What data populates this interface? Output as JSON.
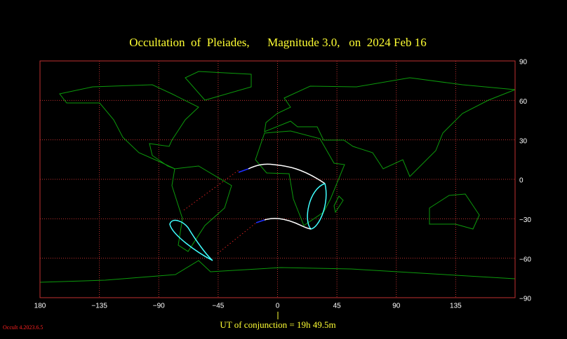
{
  "title": "Occultation  of  Pleiades,      Magnitude 3.0,   on  2024 Feb 16",
  "lon_ticks": [
    {
      "value": -180,
      "label": "180"
    },
    {
      "value": -135,
      "label": "−135"
    },
    {
      "value": -90,
      "label": "−90"
    },
    {
      "value": -45,
      "label": "−45"
    },
    0,
    45,
    90,
    135
  ],
  "lat_ticks": [
    90,
    60,
    30,
    0,
    {
      "value": -30,
      "label": "−30"
    },
    {
      "value": -60,
      "label": "−60"
    },
    {
      "value": -90,
      "label": "−90"
    }
  ],
  "conjunction": "UT of conjunction = 19h 49.5m",
  "version": "Occult 4.2023.6.5"
}
